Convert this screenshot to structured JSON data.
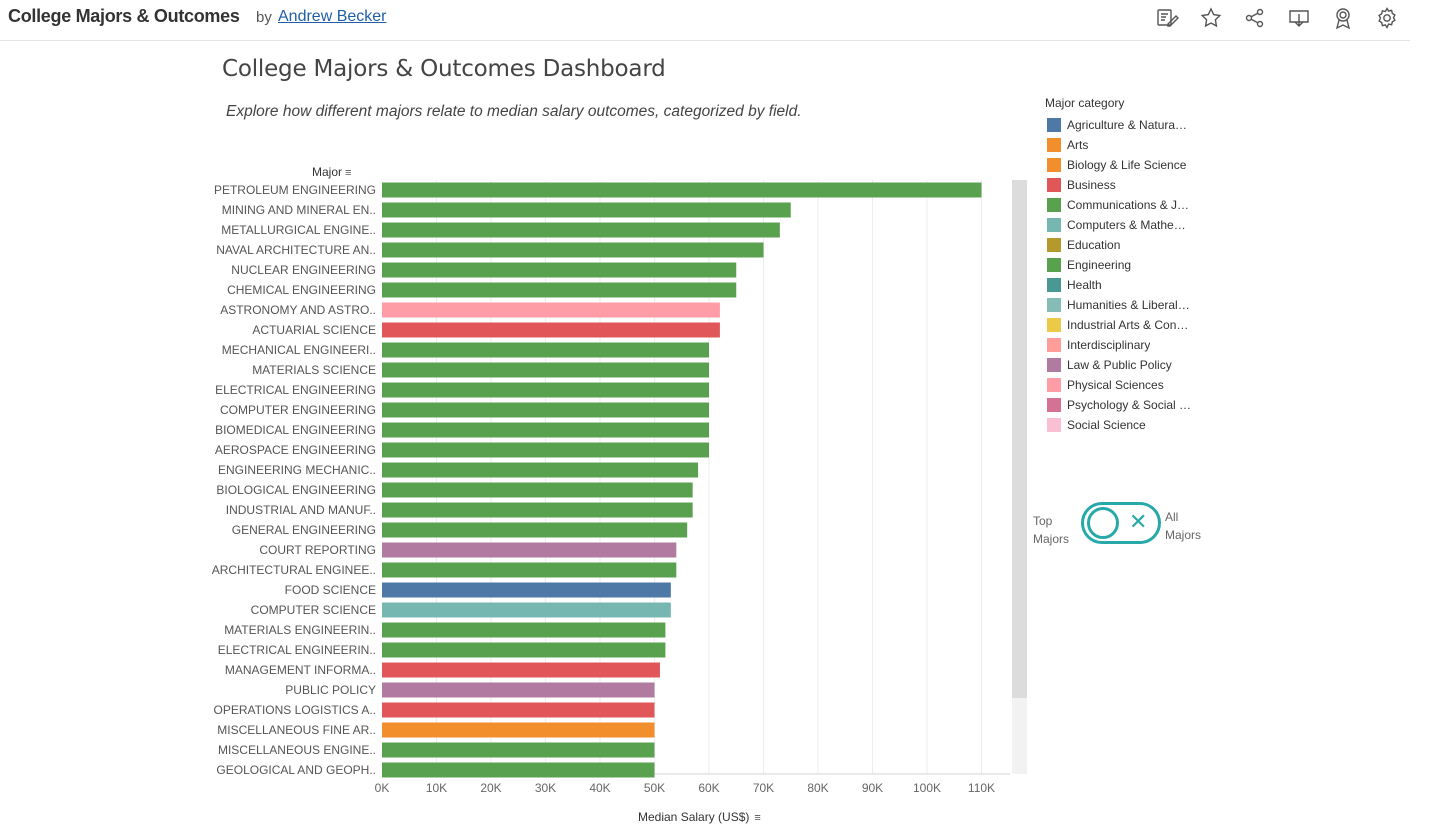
{
  "header": {
    "title": "College Majors & Outcomes",
    "by": "by",
    "author": "Andrew Becker",
    "tools": [
      "edit-icon",
      "star-icon",
      "share-icon",
      "download-icon",
      "award-icon",
      "gear-icon"
    ]
  },
  "dashboard": {
    "title": "College Majors & Outcomes Dashboard",
    "subtitle": "Explore how different majors relate to median salary outcomes, categorized by field."
  },
  "legend": {
    "title": "Major category",
    "items": [
      {
        "label": "Agriculture & Natura…",
        "color": "#4e79a7"
      },
      {
        "label": "Arts",
        "color": "#f28e2b"
      },
      {
        "label": "Biology & Life Science",
        "color": "#f28e2b"
      },
      {
        "label": "Business",
        "color": "#e15759"
      },
      {
        "label": "Communications & J…",
        "color": "#59a14f"
      },
      {
        "label": "Computers & Mathe…",
        "color": "#76b7b2"
      },
      {
        "label": "Education",
        "color": "#b6992d"
      },
      {
        "label": "Engineering",
        "color": "#59a14f"
      },
      {
        "label": "Health",
        "color": "#499894"
      },
      {
        "label": "Humanities & Liberal…",
        "color": "#86bcb6"
      },
      {
        "label": "Industrial Arts & Con…",
        "color": "#edc948"
      },
      {
        "label": "Interdisciplinary",
        "color": "#ff9d9a"
      },
      {
        "label": "Law & Public Policy",
        "color": "#b07aa1"
      },
      {
        "label": "Physical Sciences",
        "color": "#ff9da7"
      },
      {
        "label": "Psychology & Social …",
        "color": "#d37295"
      },
      {
        "label": "Social Science",
        "color": "#fabfd2"
      }
    ]
  },
  "toggle": {
    "left_line1": "Top",
    "left_line2": "Majors",
    "right_line1": "All",
    "right_line2": "Majors",
    "icon": "x-icon",
    "color": "#27a9a9"
  },
  "chart_data": {
    "type": "bar",
    "orientation": "horizontal",
    "y_axis_title": "Major",
    "xlabel": "Median Salary (US$)",
    "xlim": [
      0,
      115000
    ],
    "x_ticks": [
      0,
      10000,
      20000,
      30000,
      40000,
      50000,
      60000,
      70000,
      80000,
      90000,
      100000,
      110000
    ],
    "x_tick_labels": [
      "0K",
      "10K",
      "20K",
      "30K",
      "40K",
      "50K",
      "60K",
      "70K",
      "80K",
      "90K",
      "100K",
      "110K"
    ],
    "grid": true,
    "categories": [
      "PETROLEUM ENGINEERING",
      "MINING AND MINERAL EN..",
      "METALLURGICAL ENGINE..",
      "NAVAL ARCHITECTURE AN..",
      "NUCLEAR ENGINEERING",
      "CHEMICAL ENGINEERING",
      "ASTRONOMY AND ASTRO..",
      "ACTUARIAL SCIENCE",
      "MECHANICAL ENGINEERI..",
      "MATERIALS SCIENCE",
      "ELECTRICAL ENGINEERING",
      "COMPUTER ENGINEERING",
      "BIOMEDICAL ENGINEERING",
      "AEROSPACE ENGINEERING",
      "ENGINEERING MECHANIC..",
      "BIOLOGICAL ENGINEERING",
      "INDUSTRIAL AND MANUF..",
      "GENERAL ENGINEERING",
      "COURT REPORTING",
      "ARCHITECTURAL ENGINEE..",
      "FOOD SCIENCE",
      "COMPUTER SCIENCE",
      "MATERIALS ENGINEERIN..",
      "ELECTRICAL ENGINEERIN..",
      "MANAGEMENT INFORMA..",
      "PUBLIC POLICY",
      "OPERATIONS LOGISTICS A..",
      "MISCELLANEOUS FINE AR..",
      "MISCELLANEOUS ENGINE..",
      "GEOLOGICAL AND GEOPH.."
    ],
    "values": [
      110000,
      75000,
      73000,
      70000,
      65000,
      65000,
      62000,
      62000,
      60000,
      60000,
      60000,
      60000,
      60000,
      60000,
      58000,
      57000,
      57000,
      56000,
      54000,
      54000,
      53000,
      53000,
      52000,
      52000,
      51000,
      50000,
      50000,
      50000,
      50000,
      50000
    ],
    "category_series": [
      "Engineering",
      "Engineering",
      "Engineering",
      "Engineering",
      "Engineering",
      "Engineering",
      "Physical Sciences",
      "Business",
      "Engineering",
      "Engineering",
      "Engineering",
      "Engineering",
      "Engineering",
      "Engineering",
      "Engineering",
      "Engineering",
      "Engineering",
      "Engineering",
      "Law & Public Policy",
      "Engineering",
      "Agriculture & Natura…",
      "Computers & Mathe…",
      "Engineering",
      "Engineering",
      "Business",
      "Law & Public Policy",
      "Business",
      "Arts",
      "Engineering",
      "Engineering"
    ],
    "bar_colors": [
      "#59a14f",
      "#59a14f",
      "#59a14f",
      "#59a14f",
      "#59a14f",
      "#59a14f",
      "#ff9da7",
      "#e15759",
      "#59a14f",
      "#59a14f",
      "#59a14f",
      "#59a14f",
      "#59a14f",
      "#59a14f",
      "#59a14f",
      "#59a14f",
      "#59a14f",
      "#59a14f",
      "#b07aa1",
      "#59a14f",
      "#4e79a7",
      "#76b7b2",
      "#59a14f",
      "#59a14f",
      "#e15759",
      "#b07aa1",
      "#e15759",
      "#f28e2b",
      "#59a14f",
      "#59a14f"
    ]
  }
}
